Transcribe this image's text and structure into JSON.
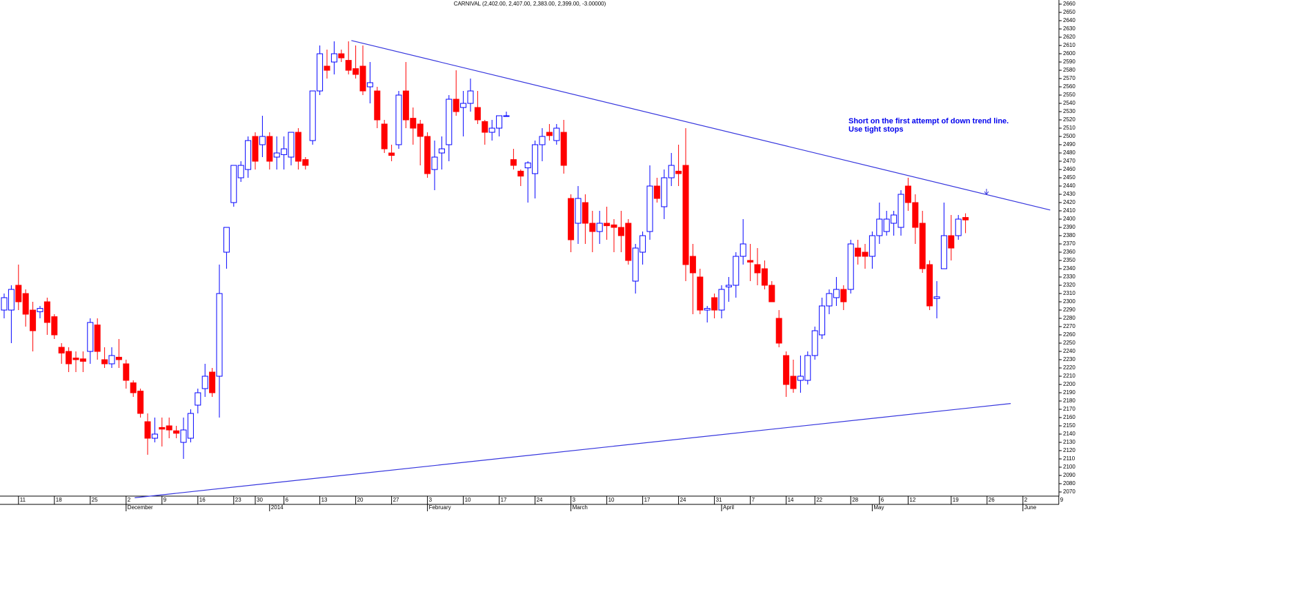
{
  "chart_data": {
    "type": "candlestick",
    "title": "CARNIVAL (2,402.00, 2,407.00, 2,383.00, 2,399.00, -3.00000)",
    "annotation": [
      "Short on the first attempt of down trend line.",
      "Use tight stops"
    ],
    "categories": [
      null,
      null,
      "11",
      null,
      null,
      null,
      null,
      "18",
      null,
      null,
      null,
      null,
      "25",
      null,
      null,
      null,
      null,
      "2",
      null,
      null,
      null,
      null,
      "9",
      null,
      null,
      null,
      null,
      "16",
      null,
      null,
      null,
      null,
      "23",
      null,
      null,
      "30",
      null,
      null,
      null,
      "6",
      null,
      null,
      null,
      null,
      "13",
      null,
      null,
      null,
      null,
      "20",
      null,
      null,
      null,
      null,
      "27",
      null,
      null,
      null,
      null,
      "3",
      null,
      null,
      null,
      null,
      "10",
      null,
      null,
      null,
      null,
      "17",
      null,
      null,
      null,
      null,
      "24",
      null,
      null,
      null,
      null,
      "3",
      null,
      null,
      null,
      null,
      "10",
      null,
      null,
      null,
      null,
      "17",
      null,
      null,
      null,
      null,
      "24",
      null,
      null,
      null,
      null,
      "31",
      null,
      null,
      null,
      null,
      "7",
      null,
      null,
      null,
      null,
      "14",
      null,
      null,
      null,
      "22",
      null,
      null,
      null,
      null,
      "28",
      null,
      null,
      null,
      "6",
      null,
      null,
      null,
      "12",
      null,
      null,
      null,
      null,
      null,
      "19",
      null,
      null,
      null,
      null,
      "26",
      null,
      null,
      null,
      null,
      "2",
      null,
      null,
      null,
      null,
      "9"
    ],
    "months": [
      {
        "label": "December",
        "at": 17
      },
      {
        "label": "2014",
        "at": 37
      },
      {
        "label": "February",
        "at": 59
      },
      {
        "label": "March",
        "at": 79
      },
      {
        "label": "April",
        "at": 100
      },
      {
        "label": "May",
        "at": 121
      },
      {
        "label": "June",
        "at": 142
      }
    ],
    "open": [
      2290,
      2290,
      2320,
      2310,
      2290,
      2288,
      2300,
      2282,
      2245,
      2240,
      2232,
      2231,
      2240,
      2272,
      2230,
      2225,
      2233,
      2225,
      2202,
      2192,
      2155,
      2135,
      2148,
      2150,
      2144,
      2130,
      2135,
      2175,
      2195,
      2215,
      2210,
      2360,
      2420,
      2450,
      2460,
      2500,
      2490,
      2500,
      2475,
      2478,
      2475,
      2505,
      2472,
      2495,
      2555,
      2585,
      2590,
      2600,
      2592,
      2582,
      2585,
      2560,
      2555,
      2515,
      2480,
      2490,
      2555,
      2522,
      2515,
      2500,
      2460,
      2480,
      2490,
      2545,
      2535,
      2540,
      2535,
      2518,
      2505,
      2510,
      2525,
      2472,
      2458,
      2462,
      2455,
      2490,
      2505,
      2495,
      2505,
      2425,
      2395,
      2420,
      2395,
      2385,
      2395,
      2393,
      2390,
      2395,
      2325,
      2360,
      2385,
      2440,
      2415,
      2450,
      2458,
      2465,
      2355,
      2330,
      2290,
      2305,
      2290,
      2318,
      2320,
      2355,
      2350,
      2345,
      2340,
      2320,
      2280,
      2235,
      2210,
      2205,
      2205,
      2235,
      2260,
      2295,
      2305,
      2315,
      2315,
      2365,
      2360,
      2355,
      2380,
      2385,
      2395,
      2390,
      2440,
      2420,
      2395,
      2345,
      2304,
      2340,
      2380,
      2380,
      2402,
      null,
      null,
      null,
      null,
      null,
      null,
      null,
      null,
      null,
      null,
      null,
      null,
      null
    ],
    "high": [
      2310,
      2320,
      2345,
      2315,
      2300,
      2295,
      2305,
      2285,
      2250,
      2245,
      2240,
      2240,
      2280,
      2280,
      2245,
      2245,
      2255,
      2230,
      2205,
      2195,
      2165,
      2160,
      2160,
      2160,
      2150,
      2160,
      2170,
      2195,
      2225,
      2220,
      2345,
      2390,
      2465,
      2470,
      2500,
      2505,
      2525,
      2505,
      2500,
      2500,
      2505,
      2510,
      2475,
      2555,
      2610,
      2605,
      2615,
      2605,
      2615,
      2610,
      2610,
      2590,
      2560,
      2520,
      2490,
      2555,
      2590,
      2535,
      2520,
      2505,
      2495,
      2500,
      2550,
      2580,
      2555,
      2570,
      2555,
      2520,
      2520,
      2525,
      2530,
      2485,
      2460,
      2470,
      2495,
      2510,
      2515,
      2515,
      2520,
      2430,
      2440,
      2430,
      2410,
      2410,
      2415,
      2400,
      2410,
      2400,
      2370,
      2385,
      2465,
      2450,
      2460,
      2480,
      2490,
      2510,
      2370,
      2340,
      2295,
      2310,
      2320,
      2330,
      2360,
      2400,
      2370,
      2365,
      2350,
      2325,
      2290,
      2240,
      2230,
      2235,
      2240,
      2270,
      2305,
      2315,
      2330,
      2320,
      2375,
      2375,
      2370,
      2385,
      2420,
      2410,
      2410,
      2435,
      2450,
      2430,
      2410,
      2350,
      2325,
      2420,
      2405,
      2405,
      2407,
      null,
      null,
      null,
      null,
      null,
      null,
      null,
      null,
      null,
      null,
      null,
      null,
      null
    ],
    "low": [
      2280,
      2250,
      2290,
      2270,
      2240,
      2280,
      2260,
      2255,
      2225,
      2215,
      2215,
      2215,
      2225,
      2230,
      2220,
      2220,
      2220,
      2195,
      2185,
      2160,
      2115,
      2130,
      2125,
      2135,
      2135,
      2110,
      2130,
      2165,
      2185,
      2185,
      2160,
      2340,
      2415,
      2445,
      2450,
      2460,
      2475,
      2460,
      2460,
      2460,
      2465,
      2460,
      2460,
      2490,
      2550,
      2570,
      2575,
      2590,
      2575,
      2570,
      2550,
      2540,
      2510,
      2480,
      2470,
      2485,
      2510,
      2490,
      2465,
      2450,
      2435,
      2460,
      2470,
      2525,
      2500,
      2530,
      2515,
      2490,
      2495,
      2500,
      2525,
      2460,
      2440,
      2420,
      2425,
      2470,
      2495,
      2490,
      2455,
      2360,
      2370,
      2370,
      2360,
      2370,
      2375,
      2360,
      2360,
      2345,
      2310,
      2345,
      2375,
      2420,
      2400,
      2440,
      2440,
      2325,
      2285,
      2285,
      2275,
      2280,
      2280,
      2300,
      2305,
      2345,
      2325,
      2320,
      2315,
      2300,
      2245,
      2185,
      2190,
      2190,
      2200,
      2230,
      2255,
      2285,
      2295,
      2290,
      2310,
      2345,
      2340,
      2340,
      2370,
      2380,
      2380,
      2380,
      2410,
      2370,
      2335,
      2290,
      2280,
      2340,
      2350,
      2375,
      2383,
      null,
      null,
      null,
      null,
      null,
      null,
      null,
      null,
      null,
      null,
      null,
      null,
      null
    ],
    "close": [
      2305,
      2315,
      2300,
      2285,
      2265,
      2292,
      2275,
      2260,
      2238,
      2225,
      2230,
      2228,
      2275,
      2240,
      2225,
      2235,
      2230,
      2205,
      2190,
      2165,
      2135,
      2140,
      2146,
      2145,
      2141,
      2145,
      2165,
      2190,
      2210,
      2190,
      2310,
      2390,
      2465,
      2465,
      2495,
      2470,
      2500,
      2470,
      2480,
      2485,
      2505,
      2470,
      2465,
      2555,
      2600,
      2580,
      2600,
      2595,
      2580,
      2575,
      2555,
      2565,
      2520,
      2485,
      2477,
      2550,
      2520,
      2510,
      2500,
      2455,
      2475,
      2485,
      2545,
      2530,
      2540,
      2555,
      2520,
      2505,
      2510,
      2525,
      2525,
      2465,
      2452,
      2468,
      2490,
      2500,
      2501,
      2510,
      2465,
      2375,
      2425,
      2395,
      2385,
      2395,
      2392,
      2390,
      2380,
      2350,
      2365,
      2380,
      2440,
      2425,
      2450,
      2465,
      2455,
      2345,
      2335,
      2290,
      2292,
      2290,
      2315,
      2320,
      2355,
      2370,
      2348,
      2335,
      2320,
      2300,
      2250,
      2200,
      2195,
      2210,
      2235,
      2265,
      2295,
      2310,
      2315,
      2300,
      2370,
      2355,
      2355,
      2380,
      2400,
      2400,
      2405,
      2430,
      2420,
      2390,
      2340,
      2295,
      2306,
      2380,
      2365,
      2400,
      2399,
      null,
      null,
      null,
      null,
      null,
      null,
      null,
      null,
      null,
      null,
      null,
      null,
      null
    ],
    "up_color": "#0000ff",
    "down_color": "#ff0000",
    "trendlines": [
      {
        "x": [
          48.4,
          145.8
        ],
        "y": [
          2616,
          2411
        ],
        "color": "#3333dd"
      },
      {
        "x": [
          18.2,
          140.3
        ],
        "y": [
          2063,
          2177
        ],
        "color": "#3333dd"
      }
    ],
    "ylim": [
      2065,
      2665
    ],
    "yticks": [
      2070,
      2080,
      2090,
      2100,
      2110,
      2120,
      2130,
      2140,
      2150,
      2160,
      2170,
      2180,
      2190,
      2200,
      2210,
      2220,
      2230,
      2240,
      2250,
      2260,
      2270,
      2280,
      2290,
      2300,
      2310,
      2320,
      2330,
      2340,
      2350,
      2360,
      2370,
      2380,
      2390,
      2400,
      2410,
      2420,
      2430,
      2440,
      2450,
      2460,
      2470,
      2480,
      2490,
      2500,
      2510,
      2520,
      2530,
      2540,
      2550,
      2560,
      2570,
      2580,
      2590,
      2600,
      2610,
      2620,
      2630,
      2640,
      2650,
      2660
    ],
    "grid": false
  }
}
